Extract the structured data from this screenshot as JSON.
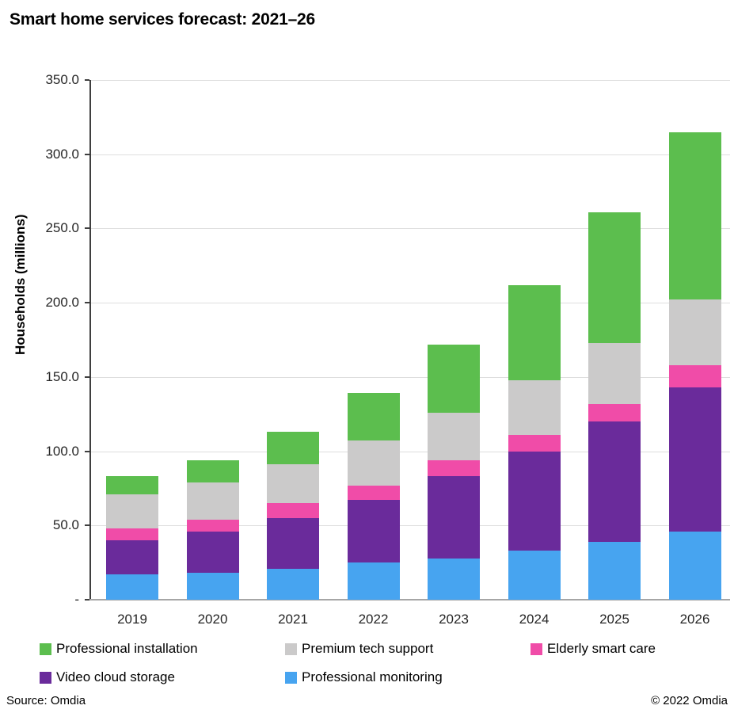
{
  "title": "Smart home services forecast: 2021–26",
  "chart_data": {
    "type": "bar",
    "stacked": true,
    "title": "Smart home services forecast: 2021–26",
    "xlabel": "",
    "ylabel": "Households (millions)",
    "ylim": [
      0,
      350
    ],
    "ytick_interval": 50,
    "ytick_labels": [
      "350.0",
      "300.0",
      "250.0",
      "200.0",
      "150.0",
      "100.0",
      "50.0",
      "-"
    ],
    "grid": true,
    "legend_position": "bottom",
    "categories": [
      "2019",
      "2020",
      "2021",
      "2022",
      "2023",
      "2024",
      "2025",
      "2026"
    ],
    "series": [
      {
        "name": "Professional monitoring",
        "color": "#47a4f0",
        "values": [
          17,
          18,
          21,
          25,
          28,
          33,
          39,
          46
        ]
      },
      {
        "name": "Video cloud storage",
        "color": "#6a2b9b",
        "values": [
          23,
          28,
          34,
          42,
          55,
          67,
          81,
          97
        ]
      },
      {
        "name": "Elderly smart care",
        "color": "#f04ca8",
        "values": [
          8,
          8,
          10,
          10,
          11,
          11,
          12,
          15
        ]
      },
      {
        "name": "Premium tech support",
        "color": "#cbcaca",
        "values": [
          23,
          25,
          26,
          30,
          32,
          37,
          41,
          44
        ]
      },
      {
        "name": "Professional installation",
        "color": "#5cbe4e",
        "values": [
          12,
          15,
          22,
          32,
          46,
          64,
          88,
          113
        ]
      }
    ],
    "stack_totals": [
      83,
      94,
      113,
      139,
      172,
      212,
      261,
      315
    ]
  },
  "legend": {
    "rows": [
      [
        {
          "label": "Professional installation",
          "color": "#5cbe4e"
        },
        {
          "label": "Premium tech support",
          "color": "#cbcaca"
        },
        {
          "label": "Elderly smart care",
          "color": "#f04ca8"
        }
      ],
      [
        {
          "label": "Video cloud storage",
          "color": "#6a2b9b"
        },
        {
          "label": "Professional monitoring",
          "color": "#47a4f0"
        }
      ]
    ]
  },
  "footer": {
    "source": "Source: Omdia",
    "copyright": "© 2022 Omdia"
  }
}
